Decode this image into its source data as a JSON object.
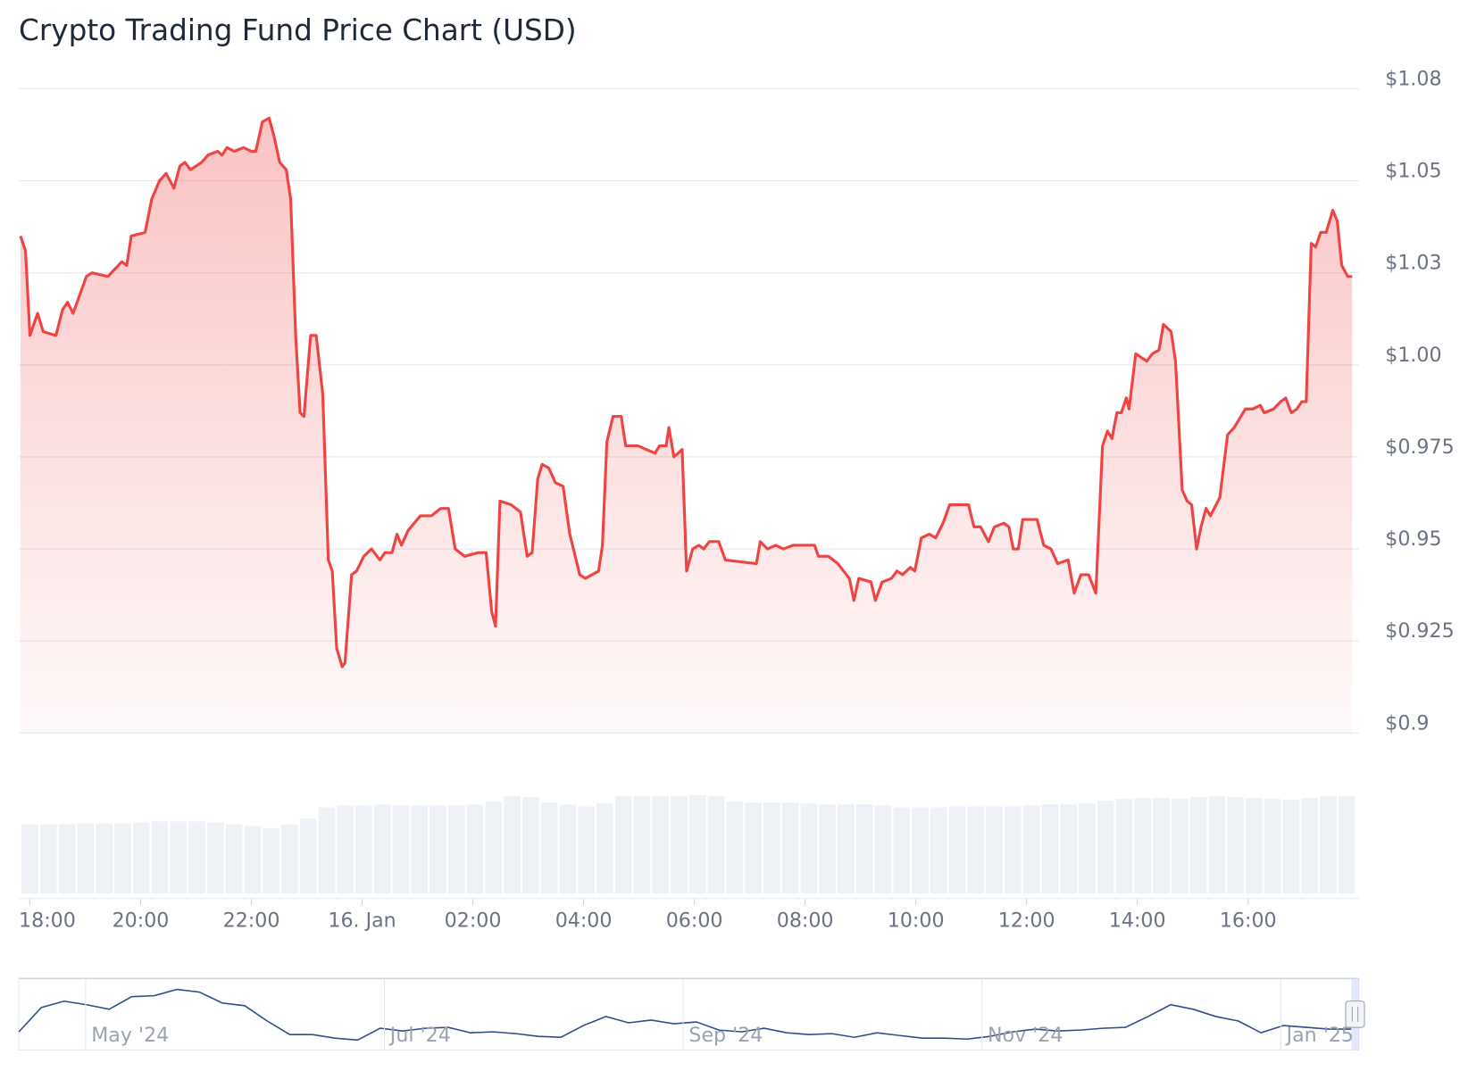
{
  "chart_data": {
    "type": "line",
    "title": "Crypto Trading Fund Price Chart (USD)",
    "color": "#ef4444",
    "x": [
      17.83,
      17.92,
      18.0,
      18.14,
      18.24,
      18.47,
      18.59,
      18.68,
      18.78,
      19.02,
      19.12,
      19.41,
      19.66,
      19.75,
      19.83,
      20.08,
      20.2,
      20.34,
      20.46,
      20.6,
      20.71,
      20.8,
      20.9,
      21.1,
      21.22,
      21.39,
      21.47,
      21.56,
      21.69,
      21.86,
      22.0,
      22.08,
      22.2,
      22.32,
      22.41,
      22.51,
      22.63,
      22.71,
      22.8,
      22.88,
      22.95,
      23.07,
      23.17,
      23.29,
      23.39,
      23.46,
      23.54,
      23.64,
      23.69,
      23.81,
      23.9,
      24.03,
      24.17,
      24.32,
      24.41,
      24.54,
      24.63,
      24.71,
      24.83,
      25.05,
      25.25,
      25.42,
      25.56,
      25.68,
      25.85,
      26.1,
      26.24,
      26.34,
      26.41,
      26.49,
      26.69,
      26.86,
      26.98,
      27.07,
      27.17,
      27.25,
      27.37,
      27.49,
      27.63,
      27.75,
      27.93,
      28.03,
      28.27,
      28.34,
      28.42,
      28.53,
      28.68,
      28.76,
      28.98,
      29.29,
      29.37,
      29.49,
      29.54,
      29.63,
      29.78,
      29.86,
      29.97,
      30.08,
      30.17,
      30.27,
      30.44,
      30.56,
      31.12,
      31.19,
      31.32,
      31.47,
      31.61,
      31.78,
      32.17,
      32.24,
      32.42,
      32.59,
      32.8,
      32.88,
      32.97,
      33.19,
      33.27,
      33.39,
      33.56,
      33.66,
      33.76,
      33.9,
      33.98,
      34.1,
      34.24,
      34.36,
      34.49,
      34.61,
      34.71,
      34.95,
      35.05,
      35.17,
      35.31,
      35.42,
      35.59,
      35.68,
      35.76,
      35.85,
      35.93,
      36.19,
      36.31,
      36.44,
      36.56,
      36.75,
      36.86,
      36.98,
      37.12,
      37.25,
      37.37,
      37.46,
      37.54,
      37.63,
      37.71,
      37.8,
      37.85,
      37.97,
      38.17,
      38.27,
      38.39,
      38.47,
      38.61,
      38.69,
      38.81,
      38.9,
      38.98,
      39.07,
      39.15,
      39.24,
      39.32,
      39.49,
      39.63,
      39.75,
      39.83,
      39.95,
      40.08,
      40.22,
      40.29,
      40.46,
      40.59,
      40.68,
      40.78,
      40.88,
      40.97,
      41.05,
      41.14,
      41.22,
      41.31,
      41.41,
      41.53,
      41.61,
      41.69,
      41.8,
      41.88
    ],
    "values": [
      1.035,
      1.031,
      1.008,
      1.014,
      1.009,
      1.008,
      1.015,
      1.017,
      1.014,
      1.024,
      1.025,
      1.024,
      1.028,
      1.027,
      1.035,
      1.036,
      1.045,
      1.05,
      1.052,
      1.048,
      1.054,
      1.055,
      1.053,
      1.055,
      1.057,
      1.058,
      1.057,
      1.059,
      1.058,
      1.059,
      1.058,
      1.058,
      1.066,
      1.067,
      1.062,
      1.055,
      1.053,
      1.045,
      1.008,
      0.987,
      0.986,
      1.008,
      1.008,
      0.992,
      0.947,
      0.944,
      0.923,
      0.918,
      0.919,
      0.943,
      0.944,
      0.948,
      0.95,
      0.947,
      0.949,
      0.949,
      0.954,
      0.951,
      0.955,
      0.959,
      0.959,
      0.961,
      0.961,
      0.95,
      0.948,
      0.949,
      0.949,
      0.933,
      0.929,
      0.963,
      0.962,
      0.96,
      0.948,
      0.949,
      0.969,
      0.973,
      0.972,
      0.968,
      0.967,
      0.954,
      0.943,
      0.942,
      0.944,
      0.951,
      0.979,
      0.986,
      0.986,
      0.978,
      0.978,
      0.976,
      0.978,
      0.978,
      0.983,
      0.975,
      0.977,
      0.944,
      0.95,
      0.951,
      0.95,
      0.952,
      0.952,
      0.947,
      0.946,
      0.952,
      0.95,
      0.951,
      0.95,
      0.951,
      0.951,
      0.948,
      0.948,
      0.946,
      0.942,
      0.936,
      0.942,
      0.941,
      0.936,
      0.941,
      0.942,
      0.944,
      0.943,
      0.945,
      0.944,
      0.953,
      0.954,
      0.953,
      0.957,
      0.962,
      0.962,
      0.962,
      0.956,
      0.956,
      0.952,
      0.956,
      0.957,
      0.956,
      0.95,
      0.95,
      0.958,
      0.958,
      0.951,
      0.95,
      0.946,
      0.947,
      0.938,
      0.943,
      0.943,
      0.938,
      0.978,
      0.982,
      0.98,
      0.987,
      0.987,
      0.991,
      0.988,
      1.003,
      1.001,
      1.003,
      1.004,
      1.011,
      1.009,
      1.001,
      0.966,
      0.963,
      0.962,
      0.95,
      0.956,
      0.961,
      0.959,
      0.964,
      0.981,
      0.983,
      0.985,
      0.988,
      0.988,
      0.989,
      0.987,
      0.988,
      0.99,
      0.991,
      0.987,
      0.988,
      0.99,
      0.99,
      1.033,
      1.032,
      1.036,
      1.036,
      1.042,
      1.039,
      1.027,
      1.024,
      1.024
    ],
    "xlim": [
      17.8,
      42.0
    ],
    "xticks": [
      {
        "value": 18,
        "label": "18:00"
      },
      {
        "value": 20,
        "label": "20:00"
      },
      {
        "value": 22,
        "label": "22:00"
      },
      {
        "value": 24,
        "label": "16. Jan"
      },
      {
        "value": 26,
        "label": "02:00"
      },
      {
        "value": 28,
        "label": "04:00"
      },
      {
        "value": 30,
        "label": "06:00"
      },
      {
        "value": 32,
        "label": "08:00"
      },
      {
        "value": 34,
        "label": "10:00"
      },
      {
        "value": 36,
        "label": "12:00"
      },
      {
        "value": 38,
        "label": "14:00"
      },
      {
        "value": 40,
        "label": "16:00"
      }
    ],
    "ylim": [
      0.9,
      1.075
    ],
    "yticks": [
      {
        "value": 0.9,
        "label": "$0.9"
      },
      {
        "value": 0.925,
        "label": "$0.925"
      },
      {
        "value": 0.95,
        "label": "$0.95"
      },
      {
        "value": 0.975,
        "label": "$0.975"
      },
      {
        "value": 1.0,
        "label": "$1.00"
      },
      {
        "value": 1.025,
        "label": "$1.03"
      },
      {
        "value": 1.05,
        "label": "$1.05"
      },
      {
        "value": 1.075,
        "label": "$1.08"
      }
    ],
    "grid": true,
    "volume": {
      "type": "bar",
      "color": "#eef1f5",
      "ylim": [
        0,
        110
      ],
      "values": [
        74,
        74,
        74,
        75,
        75,
        75,
        76,
        77,
        77,
        77,
        76,
        74,
        72,
        70,
        74,
        80,
        92,
        94,
        94,
        95,
        94,
        94,
        94,
        94,
        95,
        98,
        104,
        103,
        97,
        95,
        93,
        96,
        104,
        104,
        104,
        104,
        105,
        104,
        98,
        97,
        97,
        97,
        96,
        95,
        95,
        95,
        94,
        92,
        92,
        92,
        93,
        93,
        93,
        93,
        94,
        95,
        95,
        96,
        99,
        101,
        102,
        102,
        101,
        103,
        104,
        103,
        102,
        101,
        100,
        102,
        104,
        104
      ]
    },
    "navigator": {
      "type": "line",
      "color": "#2f4d8a",
      "ylim": [
        0,
        75
      ],
      "values": [
        18,
        45,
        52,
        48,
        43,
        57,
        58,
        65,
        62,
        50,
        47,
        30,
        15,
        15,
        11,
        9,
        22,
        19,
        22,
        23,
        17,
        18,
        16,
        13,
        12,
        25,
        35,
        28,
        31,
        27,
        29,
        20,
        18,
        22,
        17,
        15,
        16,
        12,
        17,
        14,
        11,
        11,
        10,
        13,
        18,
        21,
        19,
        20,
        22,
        23,
        35,
        48,
        43,
        35,
        30,
        17,
        25,
        23,
        21,
        21
      ],
      "labels": [
        "May '24",
        "Jul '24",
        "Sep '24",
        "Nov '24",
        "Jan '25"
      ]
    }
  }
}
